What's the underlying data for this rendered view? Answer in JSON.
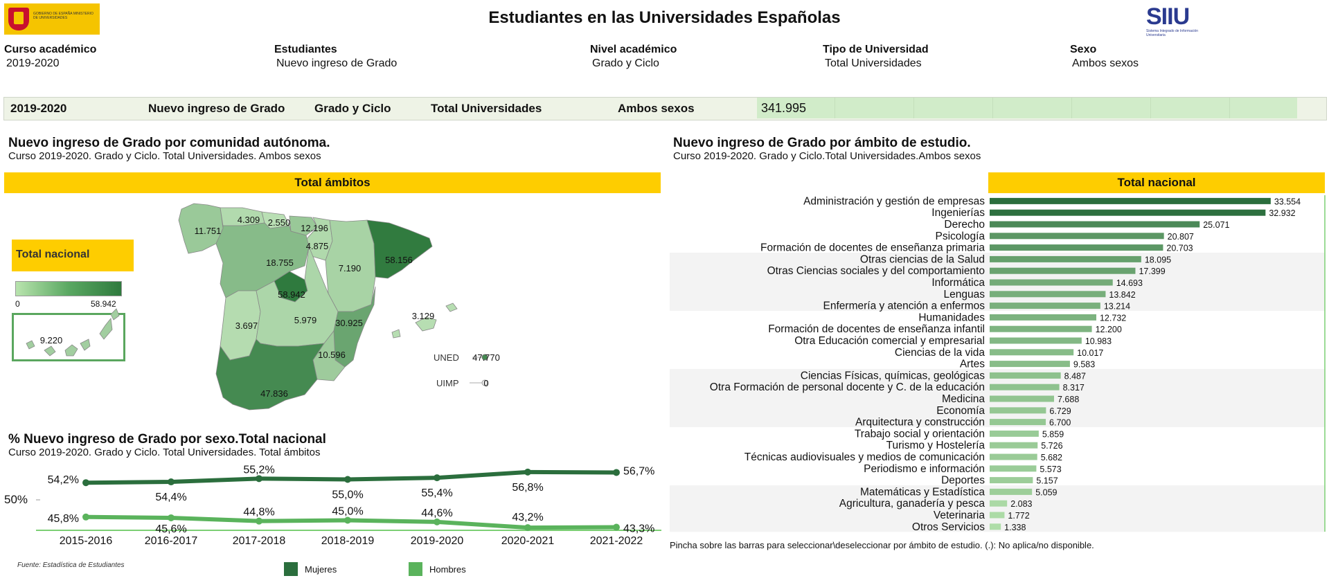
{
  "header": {
    "title": "Estudiantes en las Universidades Españolas",
    "logo_gobierno": "GOBIERNO DE ESPAÑA  MINISTERIO DE UNIVERSIDADES",
    "logo_siiu_big": "SIIU",
    "logo_siiu_small": "Sistema Integrado de Información Universitaria"
  },
  "filters": [
    {
      "label": "Curso académico",
      "value": "2019-2020"
    },
    {
      "label": "Estudiantes",
      "value": "Nuevo ingreso de Grado"
    },
    {
      "label": "Nivel académico",
      "value": "Grado y Ciclo"
    },
    {
      "label": "Tipo de Universidad",
      "value": "Total Universidades"
    },
    {
      "label": "Sexo",
      "value": "Ambos sexos"
    }
  ],
  "summary": {
    "curso": "2019-2020",
    "estudiantes": "Nuevo ingreso de Grado",
    "nivel": "Grado y Ciclo",
    "tipo": "Total Universidades",
    "sexo": "Ambos sexos",
    "total": "341.995",
    "total_value": 341995
  },
  "map_section": {
    "title": "Nuevo ingreso de Grado por comunidad autónoma.",
    "subtitle": "Curso 2019-2020. Grado y Ciclo. Total Universidades. Ambos sexos",
    "band": "Total ámbitos",
    "legend_title": "Total nacional",
    "legend_min": "0",
    "legend_max": "58.942",
    "colors": {
      "low": "#c8eac0",
      "mid": "#7cc074",
      "high": "#2f7a3e"
    },
    "regions": [
      {
        "name": "Galicia",
        "value": "11.751"
      },
      {
        "name": "Asturias",
        "value": "4.309"
      },
      {
        "name": "Cantabria",
        "value": "2.550"
      },
      {
        "name": "País Vasco",
        "value": "12.196"
      },
      {
        "name": "Navarra",
        "value": "4.875"
      },
      {
        "name": "Castilla y León",
        "value": "18.755"
      },
      {
        "name": "Aragón",
        "value": "7.190"
      },
      {
        "name": "Cataluña",
        "value": "58.156"
      },
      {
        "name": "Madrid",
        "value": "58.942"
      },
      {
        "name": "Extremadura",
        "value": "3.697"
      },
      {
        "name": "Castilla-La Mancha",
        "value": "5.979"
      },
      {
        "name": "Comunitat Valenciana",
        "value": "30.925"
      },
      {
        "name": "Illes Balears",
        "value": "3.129"
      },
      {
        "name": "Murcia",
        "value": "10.596"
      },
      {
        "name": "Andalucía",
        "value": "47.836"
      },
      {
        "name": "Canarias",
        "value": "9.220"
      }
    ],
    "uned": {
      "label": "UNED",
      "value": "47.770"
    },
    "uimp": {
      "label": "UIMP",
      "value": "0"
    }
  },
  "line_section": {
    "title": "% Nuevo ingreso de Grado por sexo.Total nacional",
    "subtitle": "Curso 2019-2020. Grado y Ciclo. Total Universidades. Total ámbitos",
    "y_ref_label": "50%",
    "fuente": "Fuente: Estadística de Estudiantes",
    "legend": [
      {
        "name": "Mujeres",
        "color": "#2b6e3d"
      },
      {
        "name": "Hombres",
        "color": "#5ab35c"
      }
    ]
  },
  "bars_section": {
    "title": "Nuevo ingreso de Grado por ámbito de estudio.",
    "subtitle": "Curso 2019-2020. Grado y Ciclo.Total Universidades.Ambos sexos",
    "band": "Total nacional",
    "note": "Pincha sobre las barras para seleccionar\\deseleccionar por ámbito de estudio. (.): No aplica/no disponible."
  },
  "chart_data": [
    {
      "type": "bar",
      "orientation": "horizontal",
      "title": "Nuevo ingreso de Grado por ámbito de estudio.",
      "categories": [
        "Administración y gestión de empresas",
        "Ingenierías",
        "Derecho",
        "Psicología",
        "Formación de docentes de enseñanza primaria",
        "Otras ciencias de la Salud",
        "Otras Ciencias sociales y del comportamiento",
        "Informática",
        "Lenguas",
        "Enfermería y atención a enfermos",
        "Humanidades",
        "Formación de docentes de enseñanza infantil",
        "Otra Educación comercial y empresarial",
        "Ciencias de la vida",
        "Artes",
        "Ciencias Físicas, químicas, geológicas",
        "Otra Formación de personal docente y C. de la educación",
        "Medicina",
        "Economía",
        "Arquitectura y construcción",
        "Trabajo social y orientación",
        "Turismo y Hostelería",
        "Técnicas audiovisuales y medios de comunicación",
        "Periodismo e información",
        "Deportes",
        "Matemáticas y Estadística",
        "Agricultura, ganadería y pesca",
        "Veterinaria",
        "Otros Servicios"
      ],
      "values": [
        33554,
        32932,
        25071,
        20807,
        20703,
        18095,
        17399,
        14693,
        13842,
        13214,
        12732,
        12200,
        10983,
        10017,
        9583,
        8487,
        8317,
        7688,
        6729,
        6700,
        5859,
        5726,
        5682,
        5573,
        5157,
        5059,
        2083,
        1772,
        1338
      ],
      "value_labels": [
        "33.554",
        "32.932",
        "25.071",
        "20.807",
        "20.703",
        "18.095",
        "17.399",
        "14.693",
        "13.842",
        "13.214",
        "12.732",
        "12.200",
        "10.983",
        "10.017",
        "9.583",
        "8.487",
        "8.317",
        "7.688",
        "6.729",
        "6.700",
        "5.859",
        "5.726",
        "5.682",
        "5.573",
        "5.157",
        "5.059",
        "2.083",
        "1.772",
        "1.338"
      ],
      "xlim": [
        0,
        36000
      ],
      "color_low": "#b6e3ae",
      "color_high": "#2b6e3d"
    },
    {
      "type": "line",
      "title": "% Nuevo ingreso de Grado por sexo.Total nacional",
      "x": [
        "2015-2016",
        "2016-2017",
        "2017-2018",
        "2018-2019",
        "2019-2020",
        "2020-2021",
        "2021-2022"
      ],
      "series": [
        {
          "name": "Mujeres",
          "values": [
            54.2,
            54.4,
            55.2,
            55.0,
            55.4,
            56.8,
            56.7
          ],
          "labels": [
            "54,2%",
            "54,4%",
            "55,2%",
            "55,0%",
            "55,4%",
            "56,8%",
            "56,7%"
          ],
          "color": "#2b6e3d"
        },
        {
          "name": "Hombres",
          "values": [
            45.8,
            45.6,
            44.8,
            45.0,
            44.6,
            43.2,
            43.3
          ],
          "labels": [
            "45,8%",
            "45,6%",
            "44,8%",
            "45,0%",
            "44,6%",
            "43,2%",
            "43,3%"
          ],
          "color": "#5ab35c"
        }
      ],
      "ylim": [
        40,
        60
      ]
    }
  ]
}
